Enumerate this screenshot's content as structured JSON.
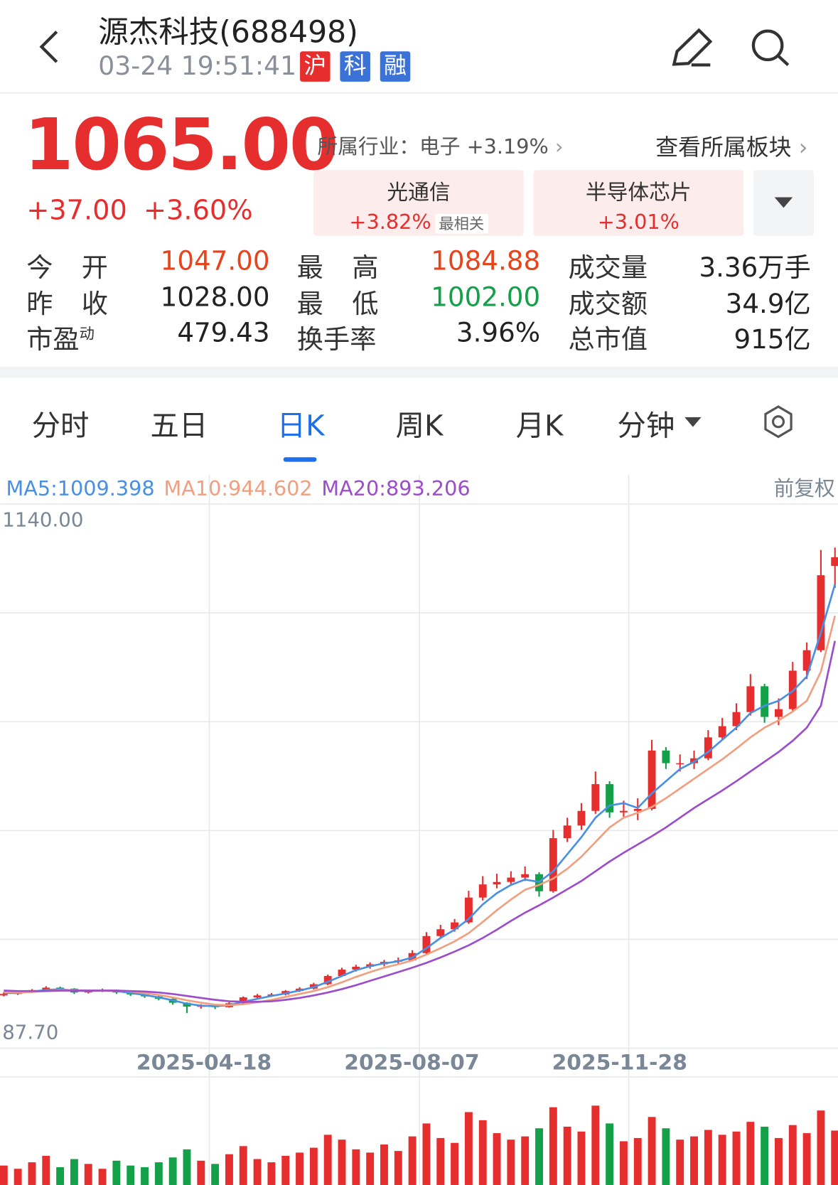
{
  "header": {
    "title": "源杰科技(688498)",
    "time": "03-24 19:51:41",
    "badges": [
      "沪",
      "科",
      "融"
    ]
  },
  "quote": {
    "price": "1065.00",
    "change": "+37.00",
    "change_pct": "+3.60%",
    "industry": "所属行业：电子 +3.19%",
    "sector_link": "查看所属板块",
    "sectors": [
      {
        "name": "光通信",
        "change": "+3.82%",
        "tag": "最相关"
      },
      {
        "name": "半导体芯片",
        "change": "+3.01%"
      }
    ],
    "stats": [
      [
        {
          "label": "今开",
          "value": "1047.00",
          "color": "red"
        },
        {
          "label": "最高",
          "value": "1084.88",
          "color": "red"
        },
        {
          "label": "成交量",
          "value": "3.36万手"
        }
      ],
      [
        {
          "label": "昨收",
          "value": "1028.00"
        },
        {
          "label": "最低",
          "value": "1002.00",
          "color": "green"
        },
        {
          "label": "成交额",
          "value": "34.9亿"
        }
      ],
      [
        {
          "label": "市盈",
          "label_sup": "动",
          "value": "479.43"
        },
        {
          "label": "换手率",
          "value": "3.96%"
        },
        {
          "label": "总市值",
          "value": "915亿"
        }
      ]
    ]
  },
  "tabs": [
    "分时",
    "五日",
    "日K",
    "周K",
    "月K",
    "分钟"
  ],
  "active_tab": 2,
  "chart_data": {
    "type": "candlestick",
    "adjust": "前复权",
    "ylim": [
      87.7,
      1140
    ],
    "yticks": [
      {
        "value": 1140,
        "label": "1140.00"
      },
      {
        "value": 87.7,
        "label": "87.70"
      }
    ],
    "xticks": [
      "2025-04-18",
      "2025-08-07",
      "2025-11-28"
    ],
    "up_color": "#e62e2e",
    "down_color": "#13a049",
    "candles": [
      [
        165,
        168,
        172,
        163
      ],
      [
        168,
        172,
        175,
        166
      ],
      [
        172,
        176,
        178,
        170
      ],
      [
        176,
        181,
        184,
        174
      ],
      [
        181,
        179,
        183,
        176
      ],
      [
        179,
        171,
        180,
        168
      ],
      [
        171,
        175,
        177,
        169
      ],
      [
        175,
        176,
        179,
        172
      ],
      [
        176,
        171,
        177,
        168
      ],
      [
        171,
        167,
        172,
        164
      ],
      [
        167,
        163,
        168,
        160
      ],
      [
        163,
        158,
        164,
        155
      ],
      [
        158,
        150,
        159,
        146
      ],
      [
        150,
        142,
        151,
        129
      ],
      [
        142,
        144,
        147,
        138
      ],
      [
        144,
        141,
        146,
        137
      ],
      [
        141,
        149,
        151,
        140
      ],
      [
        149,
        161,
        163,
        148
      ],
      [
        161,
        165,
        168,
        159
      ],
      [
        165,
        167,
        170,
        162
      ],
      [
        167,
        174,
        176,
        165
      ],
      [
        174,
        179,
        182,
        172
      ],
      [
        179,
        188,
        191,
        177
      ],
      [
        188,
        205,
        208,
        186
      ],
      [
        205,
        218,
        222,
        203
      ],
      [
        218,
        224,
        228,
        214
      ],
      [
        224,
        229,
        233,
        220
      ],
      [
        229,
        234,
        238,
        225
      ],
      [
        234,
        237,
        243,
        228
      ],
      [
        237,
        252,
        258,
        235
      ],
      [
        252,
        287,
        295,
        250
      ],
      [
        287,
        301,
        310,
        282
      ],
      [
        301,
        315,
        322,
        296
      ],
      [
        315,
        366,
        380,
        312
      ],
      [
        366,
        393,
        410,
        360
      ],
      [
        393,
        398,
        415,
        385
      ],
      [
        398,
        407,
        420,
        392
      ],
      [
        407,
        414,
        430,
        400
      ],
      [
        414,
        379,
        418,
        368
      ],
      [
        379,
        488,
        505,
        376
      ],
      [
        488,
        514,
        530,
        480
      ],
      [
        514,
        544,
        560,
        505
      ],
      [
        544,
        599,
        625,
        538
      ],
      [
        599,
        541,
        605,
        530
      ],
      [
        541,
        544,
        565,
        532
      ],
      [
        544,
        548,
        570,
        525
      ],
      [
        548,
        668,
        690,
        545
      ],
      [
        668,
        642,
        675,
        630
      ],
      [
        642,
        642,
        660,
        625
      ],
      [
        642,
        652,
        668,
        630
      ],
      [
        652,
        695,
        710,
        648
      ],
      [
        695,
        718,
        735,
        690
      ],
      [
        718,
        747,
        765,
        710
      ],
      [
        747,
        800,
        825,
        740
      ],
      [
        800,
        737,
        805,
        725
      ],
      [
        737,
        753,
        775,
        720
      ],
      [
        753,
        832,
        850,
        748
      ],
      [
        832,
        874,
        890,
        815
      ],
      [
        874,
        1028,
        1080,
        870
      ],
      [
        1047,
        1065,
        1084.88,
        1002
      ]
    ],
    "volume": [
      1.2,
      1.0,
      1.4,
      1.8,
      1.1,
      1.6,
      1.3,
      1.0,
      1.5,
      1.2,
      1.1,
      1.4,
      1.7,
      2.2,
      1.5,
      1.3,
      1.9,
      2.4,
      1.6,
      1.4,
      1.8,
      2.0,
      2.3,
      3.1,
      2.8,
      2.2,
      2.0,
      2.5,
      2.1,
      3.0,
      3.8,
      2.9,
      2.6,
      4.5,
      4.0,
      3.2,
      2.8,
      3.0,
      3.5,
      4.8,
      3.6,
      3.3,
      4.9,
      3.8,
      2.7,
      2.9,
      4.2,
      3.5,
      2.8,
      3.0,
      3.4,
      3.1,
      3.3,
      3.9,
      3.6,
      2.9,
      3.7,
      3.2,
      4.6,
      3.36
    ],
    "series": [
      {
        "name": "MA5:",
        "color": "#4a90e2",
        "values": [
          170,
          170,
          173,
          176,
          178,
          175,
          174,
          175,
          174,
          170,
          166,
          161,
          155,
          148,
          144,
          143,
          145,
          152,
          158,
          164,
          169,
          175,
          182,
          193,
          205,
          217,
          225,
          231,
          235,
          243,
          262,
          283,
          300,
          322,
          352,
          375,
          392,
          403,
          398,
          420,
          455,
          490,
          530,
          555,
          560,
          550,
          580,
          605,
          630,
          645,
          665,
          690,
          715,
          745,
          760,
          770,
          790,
          820,
          910,
          1009.398
        ]
      },
      {
        "name": "MA10:",
        "color": "#f0a080",
        "values": [
          172,
          171,
          172,
          174,
          176,
          176,
          175,
          175,
          175,
          173,
          170,
          166,
          161,
          155,
          150,
          146,
          145,
          147,
          151,
          156,
          162,
          168,
          174,
          182,
          192,
          203,
          213,
          222,
          229,
          237,
          249,
          262,
          276,
          293,
          316,
          340,
          362,
          382,
          392,
          405,
          425,
          450,
          480,
          510,
          530,
          540,
          552,
          570,
          590,
          610,
          630,
          650,
          672,
          695,
          715,
          730,
          748,
          770,
          830,
          944.602
        ]
      },
      {
        "name": "MA20:",
        "color": "#9b4dca",
        "values": [
          175,
          174,
          174,
          174,
          175,
          175,
          175,
          175,
          175,
          174,
          173,
          171,
          168,
          164,
          160,
          156,
          153,
          152,
          152,
          153,
          156,
          160,
          165,
          171,
          178,
          186,
          195,
          204,
          213,
          222,
          232,
          243,
          255,
          268,
          283,
          300,
          318,
          335,
          350,
          366,
          383,
          400,
          420,
          440,
          458,
          475,
          492,
          510,
          530,
          550,
          568,
          586,
          605,
          625,
          645,
          665,
          688,
          715,
          760,
          893.206
        ]
      }
    ]
  }
}
